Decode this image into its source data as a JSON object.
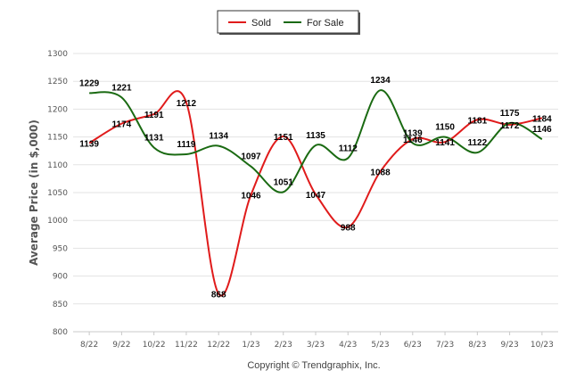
{
  "chart_data": {
    "type": "line",
    "title": "",
    "ylabel": "Average Price (in $,000)",
    "xlabel": "",
    "categories": [
      "8/22",
      "9/22",
      "10/22",
      "11/22",
      "12/22",
      "1/23",
      "2/23",
      "3/23",
      "4/23",
      "5/23",
      "6/23",
      "7/23",
      "8/23",
      "9/23",
      "10/23"
    ],
    "ylim": [
      800,
      1300
    ],
    "yticks": [
      800,
      850,
      900,
      950,
      1000,
      1050,
      1100,
      1150,
      1200,
      1250,
      1300
    ],
    "grid": true,
    "legend_position": "top-center",
    "series": [
      {
        "name": "Sold",
        "color": "#e01b1b",
        "values": [
          1139,
          1174,
          1191,
          1212,
          868,
          1046,
          1151,
          1047,
          988,
          1088,
          1146,
          1141,
          1181,
          1172,
          1184
        ]
      },
      {
        "name": "For Sale",
        "color": "#1a6a12",
        "values": [
          1229,
          1221,
          1131,
          1119,
          1134,
          1097,
          1051,
          1135,
          1112,
          1234,
          1139,
          1150,
          1122,
          1175,
          1146
        ]
      }
    ]
  },
  "footer": {
    "copyright": "Copyright © Trendgraphix, Inc."
  }
}
